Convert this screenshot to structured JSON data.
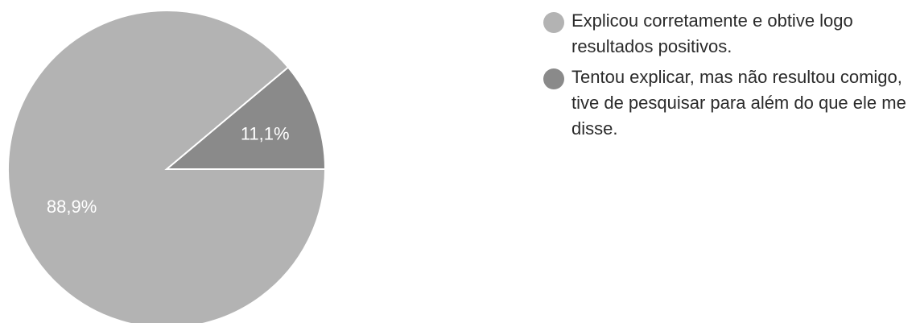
{
  "chart_data": {
    "type": "pie",
    "title": "",
    "slices": [
      {
        "label": "Explicou corretamente e obtive logo resultados positivos.",
        "value": 88.9,
        "display": "88,9%",
        "color": "#b3b3b3"
      },
      {
        "label": "Tentou explicar, mas não resultou comigo, tive de pesquisar para além do que ele me disse.",
        "value": 11.1,
        "display": "11,1%",
        "color": "#8a8a8a"
      }
    ],
    "legend_position": "right"
  },
  "legend": {
    "items": [
      {
        "label": "Explicou corretamente e obtive logo resultados positivos.",
        "color": "#b3b3b3"
      },
      {
        "label": "Tentou explicar, mas não resultou comigo, tive de pesquisar para além do que ele me disse.",
        "color": "#8a8a8a"
      }
    ]
  }
}
